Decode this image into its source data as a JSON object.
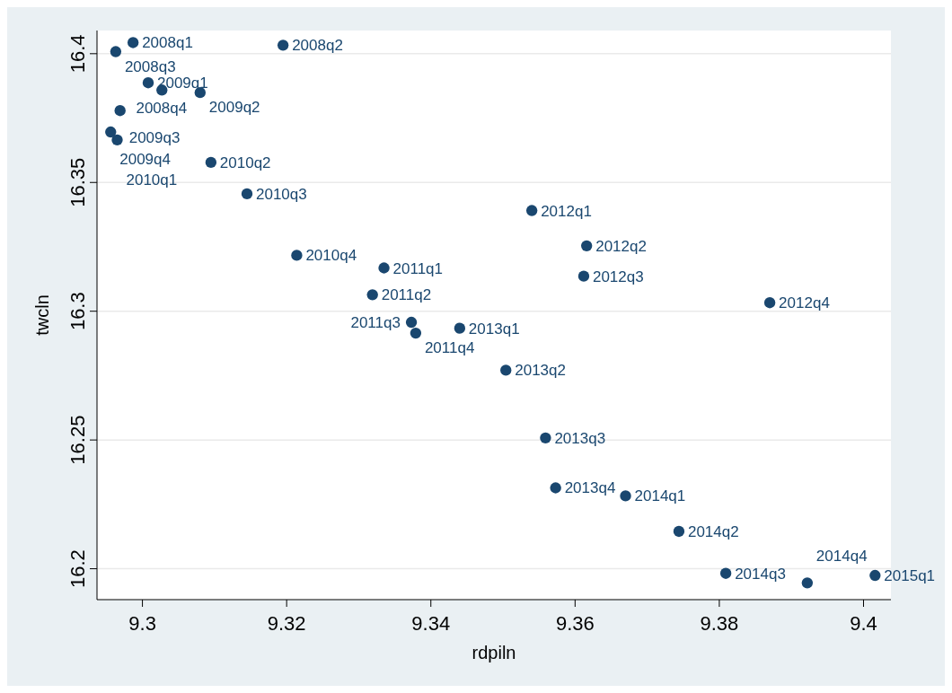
{
  "chart_data": {
    "type": "scatter",
    "xlabel": "rdpiln",
    "ylabel": "twcln",
    "xlim": [
      9.2937,
      9.4038
    ],
    "ylim": [
      16.188,
      16.409
    ],
    "xticks": [
      9.3,
      9.32,
      9.34,
      9.36,
      9.38,
      9.4
    ],
    "yticks": [
      16.2,
      16.25,
      16.3,
      16.35,
      16.4
    ],
    "grid": "y",
    "marker": "circle",
    "series": [
      {
        "color": "#1a476f",
        "x": [
          9.2987,
          9.3195,
          9.2963,
          9.3027,
          9.3008,
          9.308,
          9.2969,
          9.2956,
          9.2965,
          9.3095,
          9.3145,
          9.3214,
          9.3335,
          9.3319,
          9.3373,
          9.3379,
          9.354,
          9.3616,
          9.3612,
          9.387,
          9.344,
          9.3504,
          9.3559,
          9.3573,
          9.367,
          9.3744,
          9.3809,
          9.3922,
          9.4016
        ],
        "values": [
          16.4043,
          16.4033,
          16.4008,
          16.3859,
          16.3887,
          16.3849,
          16.3779,
          16.3696,
          16.3665,
          16.3578,
          16.3456,
          16.3217,
          16.3168,
          16.3064,
          16.2957,
          16.2915,
          16.3391,
          16.3254,
          16.3136,
          16.3033,
          16.2934,
          16.2771,
          16.2508,
          16.2314,
          16.2283,
          16.2145,
          16.1982,
          16.1945,
          16.1974
        ]
      }
    ],
    "annotations": [
      {
        "text": "2008q1",
        "x": 9.2987,
        "y": 16.4043
      },
      {
        "text": "2008q2",
        "x": 9.3195,
        "y": 16.4033
      },
      {
        "text": "2008q3",
        "x": 9.2963,
        "y": 16.4008
      },
      {
        "text": "2008q4",
        "x": 9.3027,
        "y": 16.3859
      },
      {
        "text": "2009q1",
        "x": 9.3008,
        "y": 16.3887
      },
      {
        "text": "2009q2",
        "x": 9.308,
        "y": 16.3849
      },
      {
        "text": "2009q3",
        "x": 9.2969,
        "y": 16.3779
      },
      {
        "text": "2009q4",
        "x": 9.2956,
        "y": 16.3696
      },
      {
        "text": "2010q1",
        "x": 9.2965,
        "y": 16.3665
      },
      {
        "text": "2010q2",
        "x": 9.3095,
        "y": 16.3578
      },
      {
        "text": "2010q3",
        "x": 9.3145,
        "y": 16.3456
      },
      {
        "text": "2010q4",
        "x": 9.3214,
        "y": 16.3217
      },
      {
        "text": "2011q1",
        "x": 9.3335,
        "y": 16.3168
      },
      {
        "text": "2011q2",
        "x": 9.3319,
        "y": 16.3064
      },
      {
        "text": "2011q3",
        "x": 9.3373,
        "y": 16.2957
      },
      {
        "text": "2011q4",
        "x": 9.3379,
        "y": 16.2915
      },
      {
        "text": "2012q1",
        "x": 9.354,
        "y": 16.3391
      },
      {
        "text": "2012q2",
        "x": 9.3616,
        "y": 16.3254
      },
      {
        "text": "2012q3",
        "x": 9.3612,
        "y": 16.3136
      },
      {
        "text": "2012q4",
        "x": 9.387,
        "y": 16.3033
      },
      {
        "text": "2013q1",
        "x": 9.344,
        "y": 16.2934
      },
      {
        "text": "2013q2",
        "x": 9.3504,
        "y": 16.2771
      },
      {
        "text": "2013q3",
        "x": 9.3559,
        "y": 16.2508
      },
      {
        "text": "2013q4",
        "x": 9.3573,
        "y": 16.2314
      },
      {
        "text": "2014q1",
        "x": 9.367,
        "y": 16.2283
      },
      {
        "text": "2014q2",
        "x": 9.3744,
        "y": 16.2145
      },
      {
        "text": "2014q3",
        "x": 9.3809,
        "y": 16.1982
      },
      {
        "text": "2014q4",
        "x": 9.3922,
        "y": 16.1945
      },
      {
        "text": "2015q1",
        "x": 9.4016,
        "y": 16.1974
      }
    ]
  }
}
